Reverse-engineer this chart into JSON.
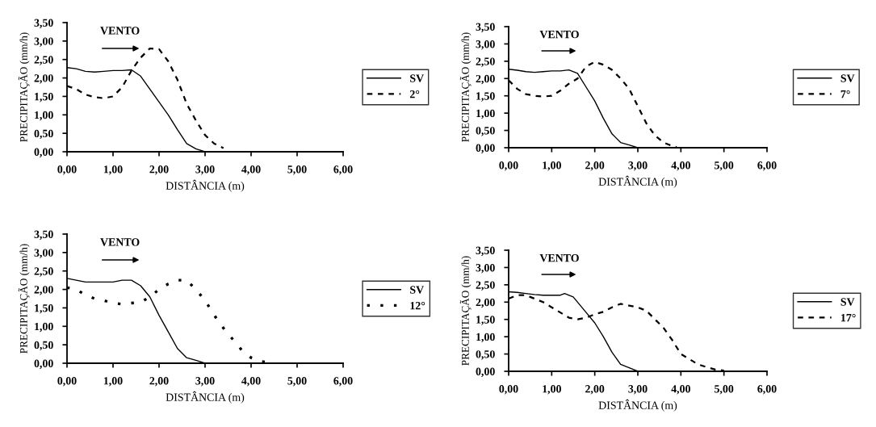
{
  "chart_data": [
    {
      "type": "line",
      "xlabel": "DISTÂNCIA (m)",
      "ylabel": "PRECIPITAÇÃO (mm/h)",
      "annotations": [
        "VENTO"
      ],
      "legend": "right",
      "xlim": [
        0,
        6
      ],
      "ylim": [
        0,
        3.5
      ],
      "xticks": [
        {
          "value": 0,
          "label": "0,00"
        },
        {
          "value": 1,
          "label": "1,00"
        },
        {
          "value": 2,
          "label": "2,00"
        },
        {
          "value": 3,
          "label": "3,00"
        },
        {
          "value": 4,
          "label": "4,00"
        },
        {
          "value": 5,
          "label": "5,00"
        },
        {
          "value": 6,
          "label": "6,00"
        }
      ],
      "yticks": [
        {
          "value": 0,
          "label": "0,00"
        },
        {
          "value": 0.5,
          "label": "0,50"
        },
        {
          "value": 1,
          "label": "1,00"
        },
        {
          "value": 1.5,
          "label": "1,50"
        },
        {
          "value": 2,
          "label": "2,00"
        },
        {
          "value": 2.5,
          "label": "2,50"
        },
        {
          "value": 3,
          "label": "3,00"
        },
        {
          "value": 3.5,
          "label": "3,50"
        }
      ],
      "series": [
        {
          "name": "SV",
          "color": "#000000",
          "line_style": "solid",
          "x": [
            0,
            0.2,
            0.4,
            0.6,
            0.8,
            1.0,
            1.2,
            1.4,
            1.6,
            1.8,
            2.0,
            2.2,
            2.4,
            2.6,
            2.8,
            3.0
          ],
          "values": [
            2.28,
            2.25,
            2.18,
            2.16,
            2.18,
            2.2,
            2.2,
            2.22,
            2.05,
            1.7,
            1.35,
            1.0,
            0.6,
            0.22,
            0.08,
            0.0
          ]
        },
        {
          "name": "2°",
          "color": "#000000",
          "line_style": "dashed",
          "x": [
            0,
            0.2,
            0.4,
            0.6,
            0.8,
            1.0,
            1.2,
            1.4,
            1.6,
            1.8,
            2.0,
            2.2,
            2.4,
            2.6,
            2.8,
            3.0,
            3.2,
            3.4
          ],
          "values": [
            1.78,
            1.7,
            1.55,
            1.48,
            1.45,
            1.5,
            1.75,
            2.2,
            2.55,
            2.8,
            2.78,
            2.45,
            1.95,
            1.3,
            0.85,
            0.45,
            0.22,
            0.1
          ]
        }
      ]
    },
    {
      "type": "line",
      "xlabel": "DISTÂNCIA (m)",
      "ylabel": "PRECIPITAÇÃO (mm/h)",
      "annotations": [
        "VENTO"
      ],
      "legend": "right",
      "xlim": [
        0,
        6
      ],
      "ylim": [
        0,
        3.5
      ],
      "xticks": [
        {
          "value": 0,
          "label": "0,00"
        },
        {
          "value": 1,
          "label": "1,00"
        },
        {
          "value": 2,
          "label": "2,00"
        },
        {
          "value": 3,
          "label": "3,00"
        },
        {
          "value": 4,
          "label": "4,00"
        },
        {
          "value": 5,
          "label": "5,00"
        },
        {
          "value": 6,
          "label": "6,00"
        }
      ],
      "yticks": [
        {
          "value": 0,
          "label": "0,00"
        },
        {
          "value": 0.5,
          "label": "0,50"
        },
        {
          "value": 1,
          "label": "1,00"
        },
        {
          "value": 1.5,
          "label": "1,50"
        },
        {
          "value": 2,
          "label": "2,00"
        },
        {
          "value": 2.5,
          "label": "2,50"
        },
        {
          "value": 3,
          "label": "3,00"
        },
        {
          "value": 3.5,
          "label": "3,50"
        }
      ],
      "series": [
        {
          "name": "SV",
          "color": "#000000",
          "line_style": "solid",
          "x": [
            0,
            0.2,
            0.4,
            0.6,
            0.8,
            1.0,
            1.2,
            1.4,
            1.6,
            1.8,
            2.0,
            2.2,
            2.4,
            2.6,
            2.8,
            3.0
          ],
          "values": [
            2.27,
            2.24,
            2.2,
            2.18,
            2.2,
            2.22,
            2.22,
            2.25,
            2.15,
            1.75,
            1.35,
            0.85,
            0.4,
            0.15,
            0.08,
            0.0
          ]
        },
        {
          "name": "7°",
          "color": "#000000",
          "line_style": "dashed",
          "x": [
            0,
            0.2,
            0.4,
            0.6,
            0.8,
            1.0,
            1.2,
            1.4,
            1.6,
            1.8,
            2.0,
            2.2,
            2.4,
            2.6,
            2.8,
            3.0,
            3.2,
            3.4,
            3.6,
            3.8,
            3.9
          ],
          "values": [
            1.95,
            1.7,
            1.55,
            1.5,
            1.48,
            1.5,
            1.65,
            1.85,
            2.0,
            2.35,
            2.48,
            2.4,
            2.25,
            2.0,
            1.7,
            1.2,
            0.7,
            0.35,
            0.15,
            0.05,
            0.02
          ]
        }
      ]
    },
    {
      "type": "line",
      "xlabel": "DISTÂNCIA (m)",
      "ylabel": "PRECIPITAÇÃO (mm/h)",
      "annotations": [
        "VENTO"
      ],
      "legend": "right",
      "xlim": [
        0,
        6
      ],
      "ylim": [
        0,
        3.5
      ],
      "xticks": [
        {
          "value": 0,
          "label": "0,00"
        },
        {
          "value": 1,
          "label": "1,00"
        },
        {
          "value": 2,
          "label": "2,00"
        },
        {
          "value": 3,
          "label": "3,00"
        },
        {
          "value": 4,
          "label": "4,00"
        },
        {
          "value": 5,
          "label": "5,00"
        },
        {
          "value": 6,
          "label": "6,00"
        }
      ],
      "yticks": [
        {
          "value": 0,
          "label": "0,00"
        },
        {
          "value": 0.5,
          "label": "0,50"
        },
        {
          "value": 1,
          "label": "1,00"
        },
        {
          "value": 1.5,
          "label": "1,50"
        },
        {
          "value": 2,
          "label": "2,00"
        },
        {
          "value": 2.5,
          "label": "2,50"
        },
        {
          "value": 3,
          "label": "3,00"
        },
        {
          "value": 3.5,
          "label": "3,50"
        }
      ],
      "series": [
        {
          "name": "SV",
          "color": "#000000",
          "line_style": "solid",
          "x": [
            0,
            0.2,
            0.4,
            0.6,
            0.8,
            1.0,
            1.2,
            1.4,
            1.6,
            1.8,
            2.0,
            2.2,
            2.4,
            2.6,
            2.8,
            3.0
          ],
          "values": [
            2.3,
            2.25,
            2.2,
            2.2,
            2.2,
            2.2,
            2.25,
            2.25,
            2.1,
            1.8,
            1.3,
            0.85,
            0.4,
            0.15,
            0.08,
            0.0
          ]
        },
        {
          "name": "12°",
          "color": "#000000",
          "line_style": "dotted",
          "x": [
            0,
            0.2,
            0.4,
            0.6,
            0.8,
            1.0,
            1.2,
            1.4,
            1.6,
            1.8,
            2.0,
            2.2,
            2.4,
            2.6,
            2.8,
            3.0,
            3.2,
            3.4,
            3.6,
            3.8,
            4.0,
            4.2,
            4.4
          ],
          "values": [
            2.05,
            2.0,
            1.85,
            1.75,
            1.7,
            1.63,
            1.6,
            1.63,
            1.65,
            1.8,
            2.0,
            2.15,
            2.25,
            2.25,
            2.0,
            1.7,
            1.3,
            0.95,
            0.65,
            0.35,
            0.15,
            0.05,
            0.02
          ]
        }
      ]
    },
    {
      "type": "line",
      "xlabel": "DISTÂNCIA (m)",
      "ylabel": "PRECIPITAÇÃO (mm/h)",
      "annotations": [
        "VENTO"
      ],
      "legend": "right",
      "xlim": [
        0,
        6
      ],
      "ylim": [
        0,
        3.5
      ],
      "xticks": [
        {
          "value": 0,
          "label": "0,00"
        },
        {
          "value": 1,
          "label": "1,00"
        },
        {
          "value": 2,
          "label": "2,00"
        },
        {
          "value": 3,
          "label": "3,00"
        },
        {
          "value": 4,
          "label": "4,00"
        },
        {
          "value": 5,
          "label": "5,00"
        },
        {
          "value": 6,
          "label": "6,00"
        }
      ],
      "yticks": [
        {
          "value": 0,
          "label": "0,00"
        },
        {
          "value": 0.5,
          "label": "0,50"
        },
        {
          "value": 1,
          "label": "1,00"
        },
        {
          "value": 1.5,
          "label": "1,50"
        },
        {
          "value": 2,
          "label": "2,00"
        },
        {
          "value": 2.5,
          "label": "2,50"
        },
        {
          "value": 3,
          "label": "3,00"
        },
        {
          "value": 3.5,
          "label": "3,50"
        }
      ],
      "series": [
        {
          "name": "SV",
          "color": "#000000",
          "line_style": "solid",
          "x": [
            0,
            0.2,
            0.4,
            0.6,
            0.8,
            1.0,
            1.2,
            1.3,
            1.5,
            1.8,
            2.0,
            2.2,
            2.4,
            2.6,
            2.8,
            3.0
          ],
          "values": [
            2.3,
            2.28,
            2.25,
            2.22,
            2.2,
            2.2,
            2.2,
            2.25,
            2.15,
            1.7,
            1.4,
            1.0,
            0.55,
            0.2,
            0.1,
            0.0
          ]
        },
        {
          "name": "17°",
          "color": "#000000",
          "line_style": "dashed",
          "x": [
            0,
            0.2,
            0.4,
            0.6,
            0.8,
            1.0,
            1.2,
            1.4,
            1.6,
            1.8,
            2.0,
            2.2,
            2.4,
            2.6,
            2.8,
            3.0,
            3.2,
            3.4,
            3.6,
            3.8,
            4.0,
            4.2,
            4.4,
            4.6,
            4.8,
            5.0
          ],
          "values": [
            2.1,
            2.2,
            2.2,
            2.1,
            2.0,
            1.85,
            1.7,
            1.55,
            1.5,
            1.55,
            1.65,
            1.72,
            1.85,
            1.95,
            1.9,
            1.85,
            1.75,
            1.5,
            1.25,
            0.9,
            0.5,
            0.35,
            0.2,
            0.12,
            0.05,
            0.02
          ]
        }
      ]
    }
  ]
}
